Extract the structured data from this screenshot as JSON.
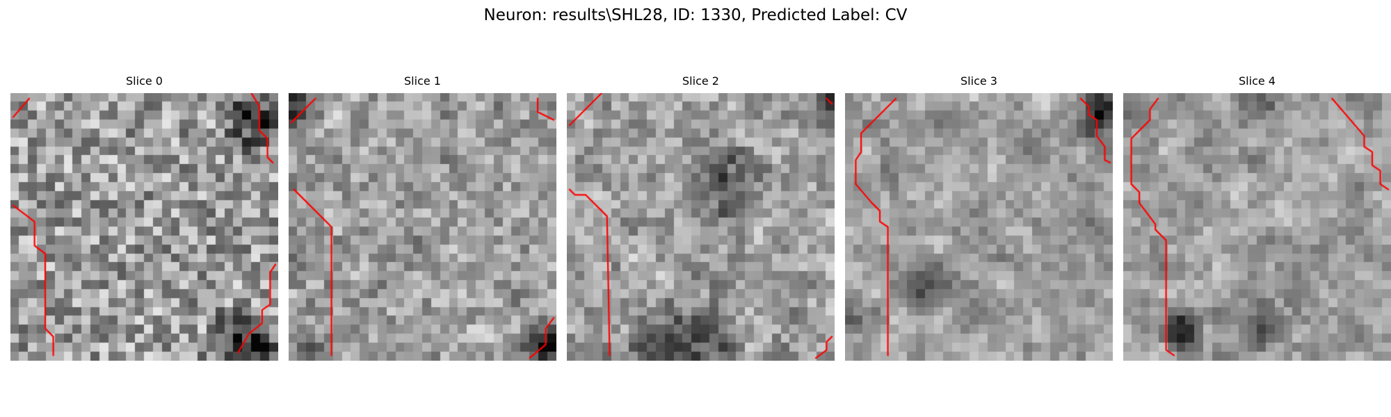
{
  "figure": {
    "title": "Neuron: results\\SHL28, ID: 1330, Predicted Label: CV",
    "contour_color": "#ff0000",
    "colormap": "gray",
    "slices": [
      {
        "title": "Slice 0",
        "seed": 11,
        "description": "light noisy texture, dark blob lower-right",
        "dark_regions": [
          [
            0.92,
            0.1,
            0.15,
            0.55
          ],
          [
            0.88,
            0.95,
            0.18,
            0.6
          ],
          [
            0.15,
            0.78,
            0.08,
            0.3
          ]
        ],
        "contours": [
          [
            [
              0.01,
              0.09
            ],
            [
              0.07,
              0.02
            ]
          ],
          [
            [
              0.9,
              0.0
            ],
            [
              0.93,
              0.05
            ],
            [
              0.93,
              0.14
            ],
            [
              0.96,
              0.17
            ],
            [
              0.96,
              0.24
            ],
            [
              0.98,
              0.26
            ]
          ],
          [
            [
              0.01,
              0.42
            ],
            [
              0.09,
              0.48
            ],
            [
              0.09,
              0.57
            ],
            [
              0.13,
              0.6
            ],
            [
              0.13,
              0.88
            ],
            [
              0.16,
              0.91
            ],
            [
              0.16,
              0.98
            ]
          ],
          [
            [
              0.99,
              0.64
            ],
            [
              0.97,
              0.67
            ],
            [
              0.97,
              0.79
            ],
            [
              0.94,
              0.81
            ],
            [
              0.94,
              0.86
            ],
            [
              0.89,
              0.9
            ],
            [
              0.85,
              0.97
            ]
          ]
        ]
      },
      {
        "title": "Slice 1",
        "seed": 23,
        "description": "bright central texture, darker corners",
        "dark_regions": [
          [
            0.03,
            0.05,
            0.12,
            0.45
          ],
          [
            0.95,
            0.95,
            0.12,
            0.55
          ],
          [
            0.05,
            0.95,
            0.1,
            0.35
          ]
        ],
        "contours": [
          [
            [
              0.01,
              0.11
            ],
            [
              0.07,
              0.05
            ],
            [
              0.1,
              0.02
            ]
          ],
          [
            [
              0.93,
              0.02
            ],
            [
              0.93,
              0.07
            ],
            [
              0.99,
              0.1
            ]
          ],
          [
            [
              0.02,
              0.36
            ],
            [
              0.16,
              0.5
            ],
            [
              0.16,
              0.98
            ]
          ],
          [
            [
              0.99,
              0.84
            ],
            [
              0.96,
              0.88
            ],
            [
              0.96,
              0.94
            ],
            [
              0.9,
              0.99
            ]
          ]
        ]
      },
      {
        "title": "Slice 2",
        "seed": 37,
        "description": "mixed gray texture, dark band through middle",
        "dark_regions": [
          [
            0.6,
            0.35,
            0.2,
            0.3
          ],
          [
            0.45,
            0.97,
            0.25,
            0.45
          ],
          [
            0.98,
            0.02,
            0.08,
            0.5
          ]
        ],
        "contours": [
          [
            [
              0.01,
              0.12
            ],
            [
              0.08,
              0.05
            ],
            [
              0.13,
              0.0
            ]
          ],
          [
            [
              0.97,
              0.02
            ],
            [
              0.99,
              0.04
            ]
          ],
          [
            [
              0.01,
              0.36
            ],
            [
              0.03,
              0.38
            ],
            [
              0.07,
              0.38
            ],
            [
              0.15,
              0.46
            ],
            [
              0.16,
              0.98
            ]
          ],
          [
            [
              0.99,
              0.91
            ],
            [
              0.97,
              0.93
            ],
            [
              0.97,
              0.96
            ],
            [
              0.93,
              0.99
            ]
          ]
        ]
      },
      {
        "title": "Slice 3",
        "seed": 53,
        "description": "smoother bright texture, dark patches",
        "dark_regions": [
          [
            0.3,
            0.7,
            0.15,
            0.35
          ],
          [
            0.95,
            0.08,
            0.12,
            0.55
          ],
          [
            0.02,
            0.85,
            0.06,
            0.4
          ]
        ],
        "contours": [
          [
            [
              0.19,
              0.02
            ],
            [
              0.06,
              0.15
            ],
            [
              0.06,
              0.22
            ],
            [
              0.04,
              0.25
            ],
            [
              0.04,
              0.34
            ],
            [
              0.1,
              0.41
            ],
            [
              0.13,
              0.44
            ],
            [
              0.13,
              0.48
            ],
            [
              0.16,
              0.5
            ],
            [
              0.16,
              0.98
            ]
          ],
          [
            [
              0.88,
              0.02
            ],
            [
              0.91,
              0.05
            ],
            [
              0.91,
              0.08
            ],
            [
              0.94,
              0.1
            ],
            [
              0.94,
              0.16
            ],
            [
              0.97,
              0.2
            ],
            [
              0.97,
              0.25
            ],
            [
              0.99,
              0.26
            ]
          ]
        ]
      },
      {
        "title": "Slice 4",
        "seed": 71,
        "description": "very smooth bright texture, dark blob lower-left",
        "dark_regions": [
          [
            0.23,
            0.88,
            0.1,
            0.55
          ],
          [
            0.5,
            0.88,
            0.12,
            0.35
          ],
          [
            0.5,
            0.02,
            0.15,
            0.3
          ]
        ],
        "contours": [
          [
            [
              0.13,
              0.02
            ],
            [
              0.1,
              0.06
            ],
            [
              0.1,
              0.1
            ],
            [
              0.06,
              0.14
            ],
            [
              0.03,
              0.17
            ],
            [
              0.03,
              0.34
            ],
            [
              0.06,
              0.37
            ],
            [
              0.06,
              0.41
            ],
            [
              0.12,
              0.49
            ],
            [
              0.12,
              0.51
            ],
            [
              0.16,
              0.55
            ],
            [
              0.16,
              0.96
            ],
            [
              0.19,
              0.98
            ]
          ],
          [
            [
              0.78,
              0.02
            ],
            [
              0.9,
              0.16
            ],
            [
              0.9,
              0.2
            ],
            [
              0.93,
              0.22
            ],
            [
              0.93,
              0.27
            ],
            [
              0.96,
              0.29
            ],
            [
              0.96,
              0.34
            ],
            [
              0.99,
              0.36
            ]
          ]
        ]
      }
    ]
  }
}
